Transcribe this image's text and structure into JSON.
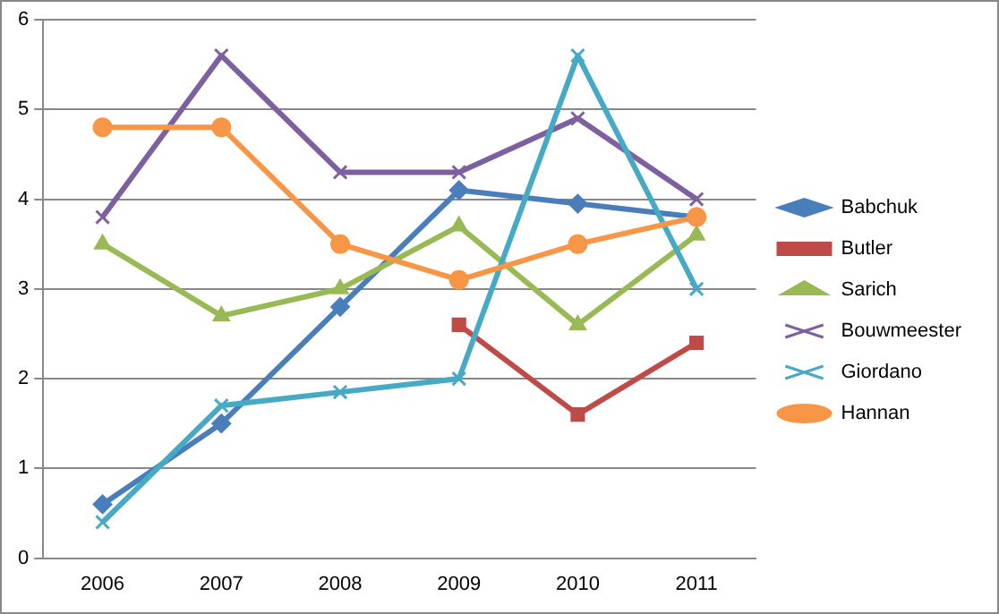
{
  "chart_data": {
    "type": "line",
    "categories": [
      "2006",
      "2007",
      "2008",
      "2009",
      "2010",
      "2011"
    ],
    "ylim": [
      0,
      6
    ],
    "yticks": [
      0,
      1,
      2,
      3,
      4,
      5,
      6
    ],
    "grid": "y",
    "legend": "right",
    "series": [
      {
        "name": "Babchuk",
        "color": "#4a7ebb",
        "marker": "diamond",
        "values": [
          0.6,
          1.5,
          2.8,
          4.1,
          3.95,
          3.8
        ]
      },
      {
        "name": "Butler",
        "color": "#be4b48",
        "marker": "square",
        "values": [
          null,
          null,
          null,
          2.6,
          1.6,
          2.4
        ]
      },
      {
        "name": "Sarich",
        "color": "#98b954",
        "marker": "triangle",
        "values": [
          3.5,
          2.7,
          3.0,
          3.7,
          2.6,
          3.6
        ]
      },
      {
        "name": "Bouwmeester",
        "color": "#7d60a0",
        "marker": "cross",
        "values": [
          3.8,
          5.6,
          4.3,
          4.3,
          4.9,
          4.0
        ]
      },
      {
        "name": "Giordano",
        "color": "#46aac5",
        "marker": "cross",
        "values": [
          0.4,
          1.7,
          1.85,
          2.0,
          5.6,
          3.0
        ]
      },
      {
        "name": "Hannan",
        "color": "#f79646",
        "marker": "circle",
        "values": [
          4.8,
          4.8,
          3.5,
          3.1,
          3.5,
          3.8
        ]
      }
    ]
  }
}
